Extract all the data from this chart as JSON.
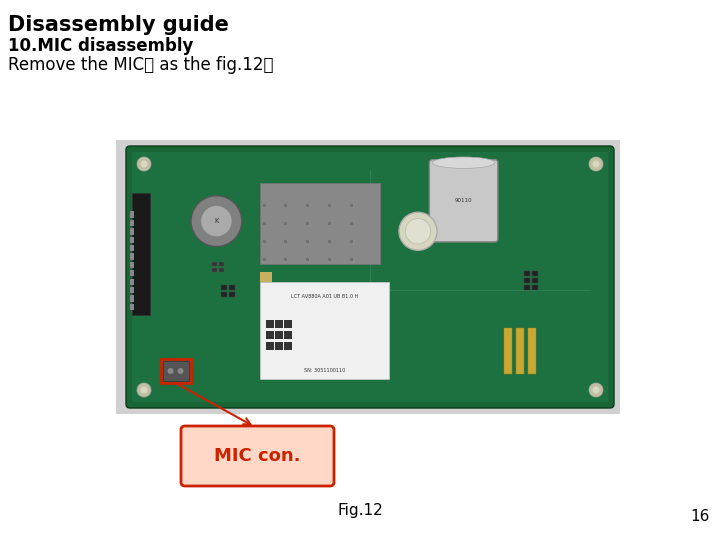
{
  "title1": "Disassembly guide",
  "title2": "10.MIC disassembly",
  "body_text": "Remove the MIC， as the fig.12；",
  "fig_label": "Fig.12",
  "page_number": "16",
  "bg_color": "#ffffff",
  "title1_fontsize": 15,
  "title2_fontsize": 12,
  "body_fontsize": 12,
  "mic_label": "MIC con.",
  "mic_label_color": "#cc2200",
  "photo_bg": "#c8c8c8",
  "pcb_color": "#1d6b3d",
  "pcb_inner": "#1e7a42"
}
